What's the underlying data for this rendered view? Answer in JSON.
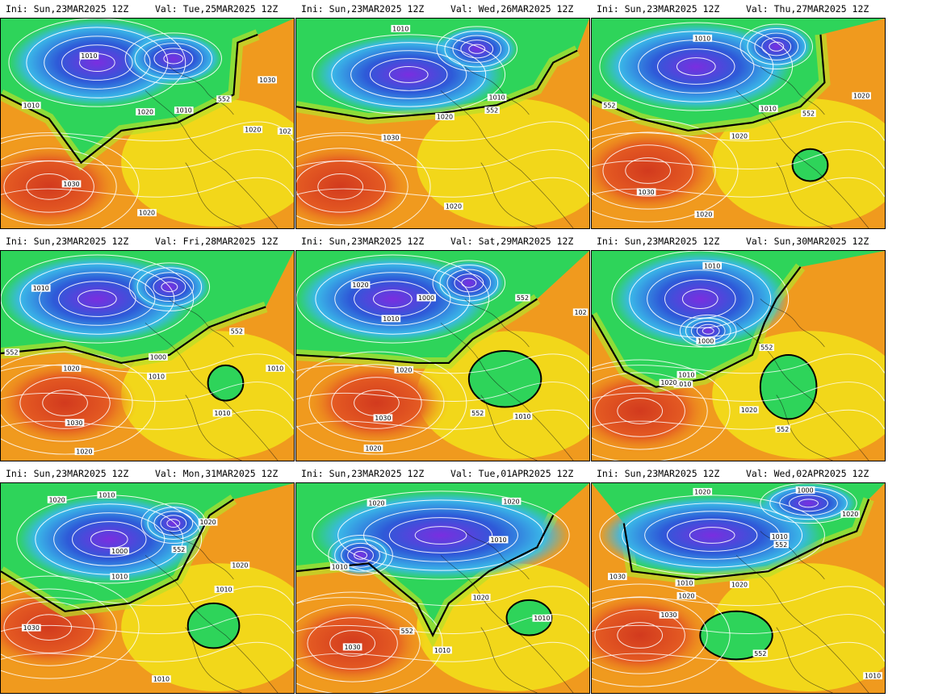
{
  "panels": [
    {
      "ini": "Ini: Sun,23MAR2025 12Z",
      "val": "Val: Tue,25MAR2025 12Z",
      "labels": [
        "1010",
        "1010",
        "1020",
        "1010",
        "1030",
        "552",
        "1020",
        "102",
        "1030",
        "1020"
      ]
    },
    {
      "ini": "Ini: Sun,23MAR2025 12Z",
      "val": "Val: Wed,26MAR2025 12Z",
      "labels": [
        "1010",
        "1010",
        "1020",
        "552",
        "1030",
        "1020"
      ]
    },
    {
      "ini": "Ini: Sun,23MAR2025 12Z",
      "val": "Val: Thu,27MAR2025 12Z",
      "labels": [
        "1010",
        "552",
        "1010",
        "552",
        "1020",
        "1020",
        "1030",
        "1020"
      ]
    },
    {
      "ini": "Ini: Sun,23MAR2025 12Z",
      "val": "Val: Fri,28MAR2025 12Z",
      "labels": [
        "1010",
        "552",
        "552",
        "1020",
        "1000",
        "1010",
        "1010",
        "1010",
        "1030",
        "1020"
      ]
    },
    {
      "ini": "Ini: Sun,23MAR2025 12Z",
      "val": "Val: Sat,29MAR2025 12Z",
      "labels": [
        "1020",
        "1000",
        "552",
        "1010",
        "102",
        "1020",
        "1030",
        "552",
        "1010",
        "1020"
      ]
    },
    {
      "ini": "Ini: Sun,23MAR2025 12Z",
      "val": "Val: Sun,30MAR2025 12Z",
      "labels": [
        "1010",
        "1010",
        "1000",
        "552",
        "1010",
        "1020",
        "1020",
        "552"
      ]
    },
    {
      "ini": "Ini: Sun,23MAR2025 12Z",
      "val": "Val: Mon,31MAR2025 12Z",
      "labels": [
        "1010",
        "1020",
        "1020",
        "1000",
        "1010",
        "552",
        "1020",
        "1010",
        "1030",
        "1010"
      ]
    },
    {
      "ini": "Ini: Sun,23MAR2025 12Z",
      "val": "Val: Tue,01APR2025 12Z",
      "labels": [
        "1020",
        "1010",
        "1020",
        "1010",
        "1020",
        "552",
        "1010",
        "1010",
        "1030"
      ]
    },
    {
      "ini": "Ini: Sun,23MAR2025 12Z",
      "val": "Val: Wed,02APR2025 12Z",
      "labels": [
        "1020",
        "1000",
        "1020",
        "1010",
        "552",
        "1030",
        "1010",
        "1020",
        "1020",
        "1030",
        "552",
        "1010"
      ]
    }
  ],
  "colors": {
    "deep_low": "#7a2ee0",
    "low": "#2e5ad8",
    "cyan": "#3ab8e8",
    "mid_green": "#2ed45a",
    "yellow": "#f2e21a",
    "orange": "#f09a1e",
    "deep_high": "#d23a1e",
    "contour": "#ffffff",
    "boundary": "#000000"
  }
}
